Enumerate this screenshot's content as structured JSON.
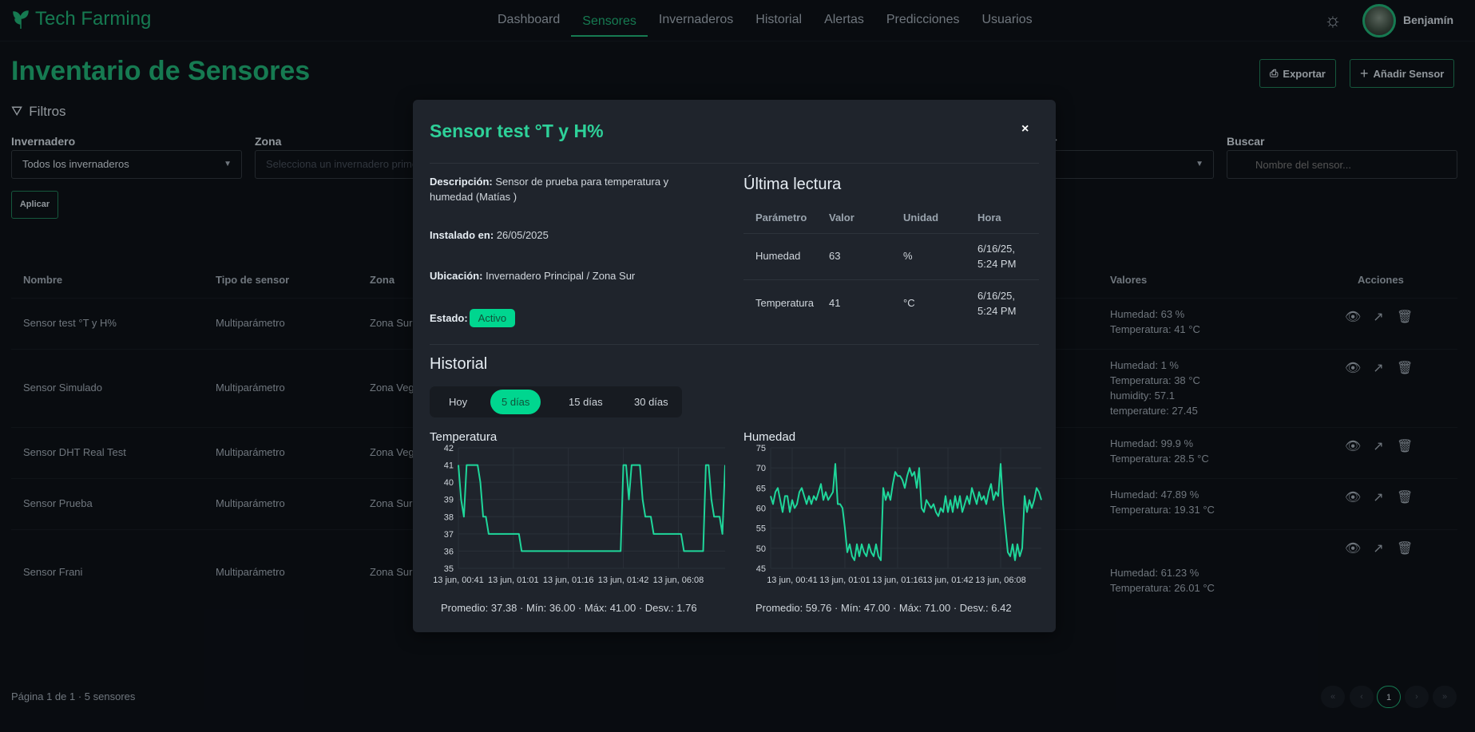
{
  "app": {
    "name": "Tech Farming",
    "user": "Benjamín",
    "accent": "#1fa971"
  },
  "nav": [
    {
      "label": "Dashboard"
    },
    {
      "label": "Sensores",
      "active": true
    },
    {
      "label": "Invernaderos"
    },
    {
      "label": "Historial"
    },
    {
      "label": "Alertas"
    },
    {
      "label": "Predicciones"
    },
    {
      "label": "Usuarios"
    }
  ],
  "page": {
    "title": "Inventario de Sensores",
    "export_label": "Exportar",
    "add_label": "Añadir Sensor"
  },
  "filters": {
    "title": "Filtros",
    "invernadero_label": "Invernadero",
    "invernadero_value": "Todos los invernaderos",
    "zona_label": "Zona",
    "zona_placeholder": "Selecciona un invernadero primero",
    "tipo_label_partial": "r",
    "buscar_label": "Buscar",
    "buscar_placeholder": "Nombre del sensor...",
    "apply_label": "Aplicar"
  },
  "table": {
    "headers": {
      "nombre": "Nombre",
      "tipo": "Tipo de sensor",
      "zona": "Zona",
      "valores": "Valores",
      "acciones": "Acciones"
    },
    "rows": [
      {
        "nombre": "Sensor test °T y H%",
        "tipo": "Multiparámetro",
        "zona": "Zona Sur",
        "valores": [
          "Humedad: 63 %",
          "Temperatura: 41 °C"
        ]
      },
      {
        "nombre": "Sensor Simulado",
        "tipo": "Multiparámetro",
        "zona": "Zona Vega",
        "valores": [
          "Humedad: 1 %",
          "Temperatura: 38 °C",
          "humidity: 57.1",
          "temperature: 27.45"
        ]
      },
      {
        "nombre": "Sensor DHT Real Test",
        "tipo": "Multiparámetro",
        "zona": "Zona Vega",
        "valores": [
          "Humedad: 99.9 %",
          "Temperatura: 28.5 °C"
        ]
      },
      {
        "nombre": "Sensor Prueba",
        "tipo": "Multiparámetro",
        "zona": "Zona Sur",
        "valores": [
          "Humedad: 47.89 %",
          "Temperatura: 19.31 °C"
        ]
      },
      {
        "nombre": "Sensor Frani",
        "tipo": "Multiparámetro",
        "zona": "Zona Sur",
        "valores": [
          "Humedad: 61.23 %",
          "Temperatura: 26.01 °C"
        ]
      }
    ]
  },
  "pagination": {
    "info": "Página 1 de 1 · 5 sensores",
    "first": "«",
    "prev": "‹",
    "current": "1",
    "next": "›",
    "last": "»"
  },
  "modal": {
    "title": "Sensor test °T y H%",
    "close": "×",
    "desc_label": "Descripción:",
    "desc": "Sensor de prueba para temperatura y humedad (Matías )",
    "installed_label": "Instalado en:",
    "installed": "26/05/2025",
    "location_label": "Ubicación:",
    "location": "Invernadero Principal / Zona Sur",
    "state_label": "Estado:",
    "state": "Activo",
    "last_title": "Última lectura",
    "last_headers": [
      "Parámetro",
      "Valor",
      "Unidad",
      "Hora"
    ],
    "last_rows": [
      [
        "Humedad",
        "63",
        "%",
        "6/16/25, 5:24 PM"
      ],
      [
        "Temperatura",
        "41",
        "°C",
        "6/16/25, 5:24 PM"
      ]
    ],
    "history_title": "Historial",
    "ranges": [
      {
        "label": "Hoy"
      },
      {
        "label": "5 días",
        "active": true
      },
      {
        "label": "15 días"
      },
      {
        "label": "30 días"
      }
    ]
  },
  "chart_data": [
    {
      "type": "line",
      "title": "Temperatura",
      "ylim": [
        35,
        42
      ],
      "yticks": [
        35,
        36,
        37,
        38,
        39,
        40,
        41,
        42
      ],
      "line_color": "#1fd69a",
      "x_tick_labels": [
        {
          "index": 0,
          "label": "13 jun, 00:41"
        },
        {
          "index": 20,
          "label": "13 jun, 01:01"
        },
        {
          "index": 40,
          "label": "13 jun, 01:16"
        },
        {
          "index": 60,
          "label": "13 jun, 01:42"
        },
        {
          "index": 80,
          "label": "13 jun, 06:08"
        }
      ],
      "values": [
        41,
        39,
        38,
        41,
        41,
        41,
        41,
        41,
        40,
        38,
        38,
        37,
        37,
        37,
        37,
        37,
        37,
        37,
        37,
        37,
        37,
        37,
        37,
        36,
        36,
        36,
        36,
        36,
        36,
        36,
        36,
        36,
        36,
        36,
        36,
        36,
        36,
        36,
        36,
        36,
        36,
        36,
        36,
        36,
        36,
        36,
        36,
        36,
        36,
        36,
        36,
        36,
        36,
        36,
        36,
        36,
        36,
        36,
        36,
        36,
        41,
        41,
        39,
        41,
        41,
        41,
        41,
        39,
        38,
        38,
        38,
        37,
        37,
        37,
        37,
        37,
        37,
        37,
        37,
        37,
        37,
        37,
        36,
        36,
        36,
        36,
        36,
        36,
        36,
        36,
        41,
        41,
        39,
        38,
        38,
        38,
        37,
        41
      ],
      "stats": "Promedio: 37.38 · Mín: 36.00 · Máx: 41.00 · Desv.: 1.76"
    },
    {
      "type": "line",
      "title": "Humedad",
      "ylim": [
        45,
        75
      ],
      "yticks": [
        45,
        50,
        55,
        60,
        65,
        70,
        75
      ],
      "line_color": "#1fd69a",
      "x_tick_labels": [
        {
          "index": 9,
          "label": "13 jun, 00:41"
        },
        {
          "index": 31,
          "label": "13 jun, 01:01"
        },
        {
          "index": 53,
          "label": "13 jun, 01:16"
        },
        {
          "index": 74,
          "label": "13 jun, 01:42"
        },
        {
          "index": 96,
          "label": "13 jun, 06:08"
        }
      ],
      "values": [
        63,
        61,
        64,
        65,
        62,
        59,
        63,
        63,
        59,
        62,
        60,
        61,
        64,
        65,
        63,
        61,
        63,
        61,
        63,
        62,
        64,
        66,
        62,
        64,
        62,
        63,
        64,
        71,
        61,
        61,
        60,
        55,
        49,
        51,
        48,
        47,
        51,
        48,
        51,
        49,
        48,
        51,
        49,
        48,
        51,
        48,
        47,
        65,
        62,
        64,
        62,
        66,
        69,
        68,
        68,
        67,
        65,
        68,
        70,
        68,
        69,
        65,
        70,
        60,
        59,
        62,
        61,
        60,
        61,
        59,
        58,
        60,
        59,
        63,
        59,
        62,
        59,
        63,
        60,
        63,
        59,
        61,
        63,
        61,
        65,
        63,
        61,
        64,
        62,
        63,
        61,
        64,
        66,
        62,
        64,
        63,
        71,
        61,
        55,
        49,
        48,
        51,
        47,
        51,
        48,
        50,
        63,
        59,
        62,
        60,
        62,
        65,
        64,
        62
      ],
      "stats": "Promedio: 59.76 · Mín: 47.00 · Máx: 71.00 · Desv.: 6.42"
    }
  ]
}
